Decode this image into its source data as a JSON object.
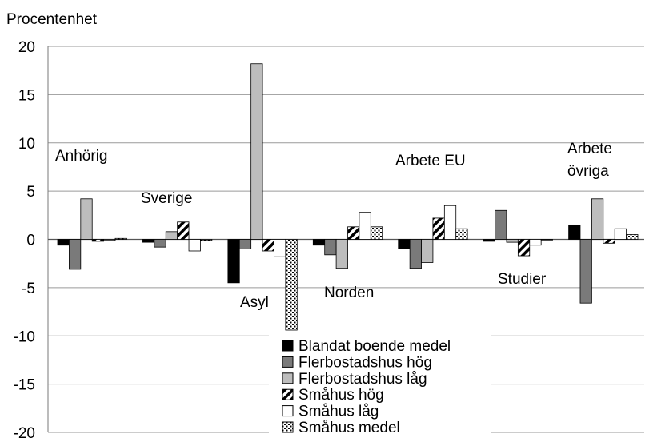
{
  "chart_data": {
    "type": "bar",
    "ylabel": "Procentenhet",
    "ylim": [
      -20,
      20
    ],
    "yticks": [
      20,
      15,
      10,
      5,
      0,
      -5,
      -10,
      -15,
      -20
    ],
    "grid": true,
    "legend_position": "bottom-center",
    "categories": [
      "Anhörig",
      "Sverige",
      "Asyl",
      "Norden",
      "Arbete EU",
      "Studier",
      "Arbete övriga"
    ],
    "series": [
      {
        "name": "Blandat boende medel",
        "fill": "#000000",
        "pattern": "solid",
        "values": [
          -0.6,
          -0.3,
          -4.5,
          -0.6,
          -1.0,
          -0.2,
          1.5
        ]
      },
      {
        "name": "Flerbostadshus hög",
        "fill": "#7a7a7a",
        "pattern": "solid",
        "values": [
          -3.1,
          -0.8,
          -1.0,
          -1.6,
          -3.0,
          3.0,
          -6.6
        ]
      },
      {
        "name": "Flerbostadshus låg",
        "fill": "#bdbdbd",
        "pattern": "solid",
        "values": [
          4.2,
          0.8,
          18.2,
          -3.0,
          -2.4,
          -0.3,
          4.2
        ]
      },
      {
        "name": "Småhus hög",
        "fill": "#ffffff",
        "pattern": "diagonal",
        "values": [
          -0.2,
          1.8,
          -1.2,
          1.3,
          2.2,
          -1.7,
          -0.4
        ]
      },
      {
        "name": "Småhus låg",
        "fill": "#ffffff",
        "pattern": "solid",
        "values": [
          -0.1,
          -1.2,
          -1.8,
          2.8,
          3.5,
          -0.6,
          1.1
        ]
      },
      {
        "name": "Småhus medel",
        "fill": "#ffffff",
        "pattern": "dots",
        "values": [
          0.1,
          -0.1,
          -9.4,
          1.3,
          1.1,
          0.0,
          0.5
        ]
      }
    ],
    "annotations": [
      {
        "lines": [
          "Anhörig"
        ]
      },
      {
        "lines": [
          "Sverige"
        ]
      },
      {
        "lines": [
          "Asyl"
        ]
      },
      {
        "lines": [
          "Norden"
        ]
      },
      {
        "lines": [
          "Arbete EU"
        ]
      },
      {
        "lines": [
          "Studier"
        ]
      },
      {
        "lines": [
          "Arbete",
          "övriga"
        ]
      }
    ]
  }
}
